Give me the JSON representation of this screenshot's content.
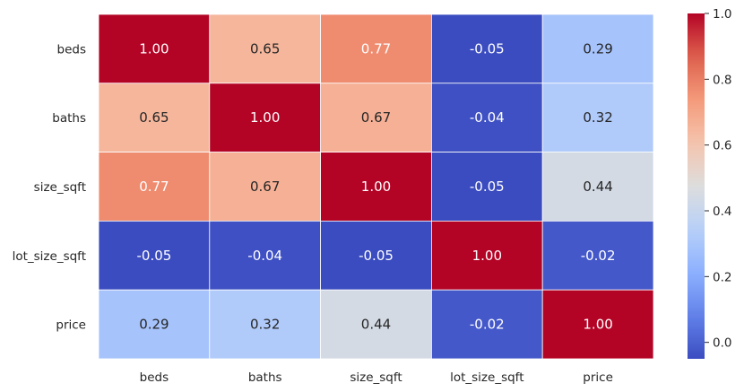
{
  "chart_data": {
    "type": "heatmap",
    "title": "",
    "xlabel": "",
    "ylabel": "",
    "x_categories": [
      "beds",
      "baths",
      "size_sqft",
      "lot_size_sqft",
      "price"
    ],
    "y_categories": [
      "beds",
      "baths",
      "size_sqft",
      "lot_size_sqft",
      "price"
    ],
    "values": [
      [
        1.0,
        0.65,
        0.77,
        -0.05,
        0.29
      ],
      [
        0.65,
        1.0,
        0.67,
        -0.04,
        0.32
      ],
      [
        0.77,
        0.67,
        1.0,
        -0.05,
        0.44
      ],
      [
        -0.05,
        -0.04,
        -0.05,
        1.0,
        -0.02
      ],
      [
        0.29,
        0.32,
        0.44,
        -0.02,
        1.0
      ]
    ],
    "annotation_format": "0.00",
    "colormap": "coolwarm",
    "color_range": [
      -0.05,
      1.0
    ],
    "colorbar": {
      "ticks": [
        0.0,
        0.2,
        0.4,
        0.6,
        0.8,
        1.0
      ],
      "tick_labels": [
        "0.0",
        "0.2",
        "0.4",
        "0.6",
        "0.8",
        "1.0"
      ],
      "placement": "right"
    },
    "cell_border_color": "#ffffff"
  }
}
